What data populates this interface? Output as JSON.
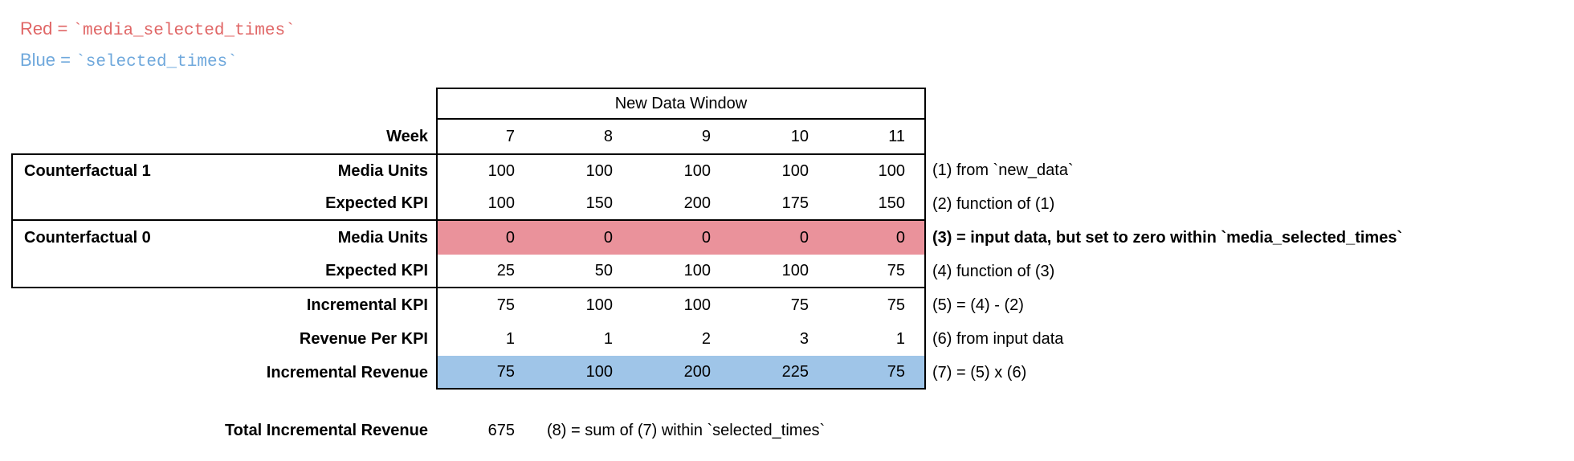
{
  "colors": {
    "legend_red": "#e06666",
    "legend_blue": "#6fa8dc",
    "red_highlight": "#ea929b",
    "blue_highlight": "#9fc5e8"
  },
  "legend": {
    "eq": " = ",
    "red": {
      "label": "Red",
      "code": "`media_selected_times`"
    },
    "blue": {
      "label": "Blue",
      "code": "`selected_times`"
    }
  },
  "table": {
    "window_header": "New Data Window",
    "week_label": "Week",
    "weeks": [
      "7",
      "8",
      "9",
      "10",
      "11"
    ],
    "rows": [
      {
        "group": "Counterfactual 1",
        "label": "Media Units",
        "values": [
          "100",
          "100",
          "100",
          "100",
          "100"
        ],
        "annotation": "(1) from `new_data`"
      },
      {
        "group": "",
        "label": "Expected KPI",
        "values": [
          "100",
          "150",
          "200",
          "175",
          "150"
        ],
        "annotation": "(2) function of (1)"
      },
      {
        "group": "Counterfactual 0",
        "label": "Media Units",
        "values": [
          "0",
          "0",
          "0",
          "0",
          "0"
        ],
        "annotation": "(3) = input data, but set to zero within `media_selected_times`"
      },
      {
        "group": "",
        "label": "Expected KPI",
        "values": [
          "25",
          "50",
          "100",
          "100",
          "75"
        ],
        "annotation": "(4) function of (3)"
      },
      {
        "group": "",
        "label": "Incremental KPI",
        "values": [
          "75",
          "100",
          "100",
          "75",
          "75"
        ],
        "annotation": "(5) = (4) - (2)"
      },
      {
        "group": "",
        "label": "Revenue Per KPI",
        "values": [
          "1",
          "1",
          "2",
          "3",
          "1"
        ],
        "annotation": "(6) from input data"
      },
      {
        "group": "",
        "label": "Incremental Revenue",
        "values": [
          "75",
          "100",
          "200",
          "225",
          "75"
        ],
        "annotation": "(7) = (5) x (6)"
      }
    ]
  },
  "total": {
    "label": "Total Incremental Revenue",
    "value": "675",
    "annotation": "(8) = sum of (7) within `selected_times`"
  }
}
